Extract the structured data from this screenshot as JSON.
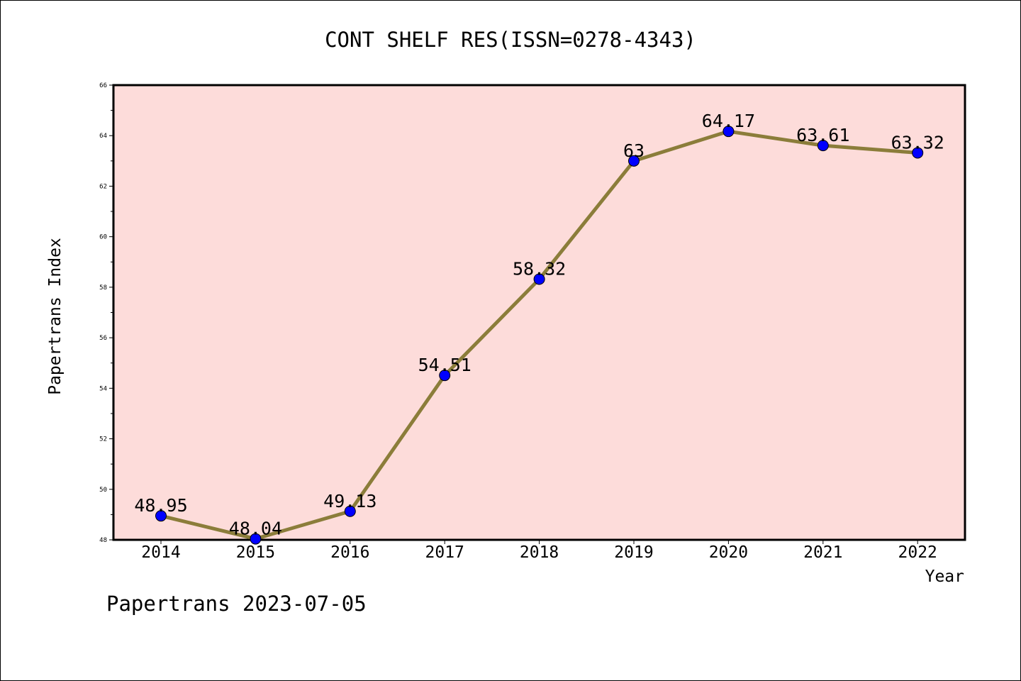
{
  "chart_data": {
    "type": "line",
    "title": "CONT SHELF RES(ISSN=0278-4343)",
    "xlabel": "Year",
    "ylabel": "Papertrans Index",
    "categories": [
      "2014",
      "2015",
      "2016",
      "2017",
      "2018",
      "2019",
      "2020",
      "2021",
      "2022"
    ],
    "series": [
      {
        "values": [
          48.95,
          48.04,
          49.13,
          54.51,
          58.32,
          63,
          64.17,
          63.61,
          63.32
        ],
        "labels": [
          "48.95",
          "48.04",
          "49.13",
          "54.51",
          "58.32",
          "63",
          "64.17",
          "63.61",
          "63.32"
        ]
      }
    ],
    "ylim": [
      48,
      66
    ],
    "y_ticks": [
      "48",
      "50",
      "52",
      "54",
      "56",
      "58",
      "60",
      "62",
      "64",
      "66"
    ],
    "grid": false,
    "colors": {
      "plot_background": "#fddcda",
      "line": "#8b7d3a",
      "marker": "#0000ff"
    }
  },
  "footer": {
    "text": "Papertrans 2023-07-05"
  }
}
